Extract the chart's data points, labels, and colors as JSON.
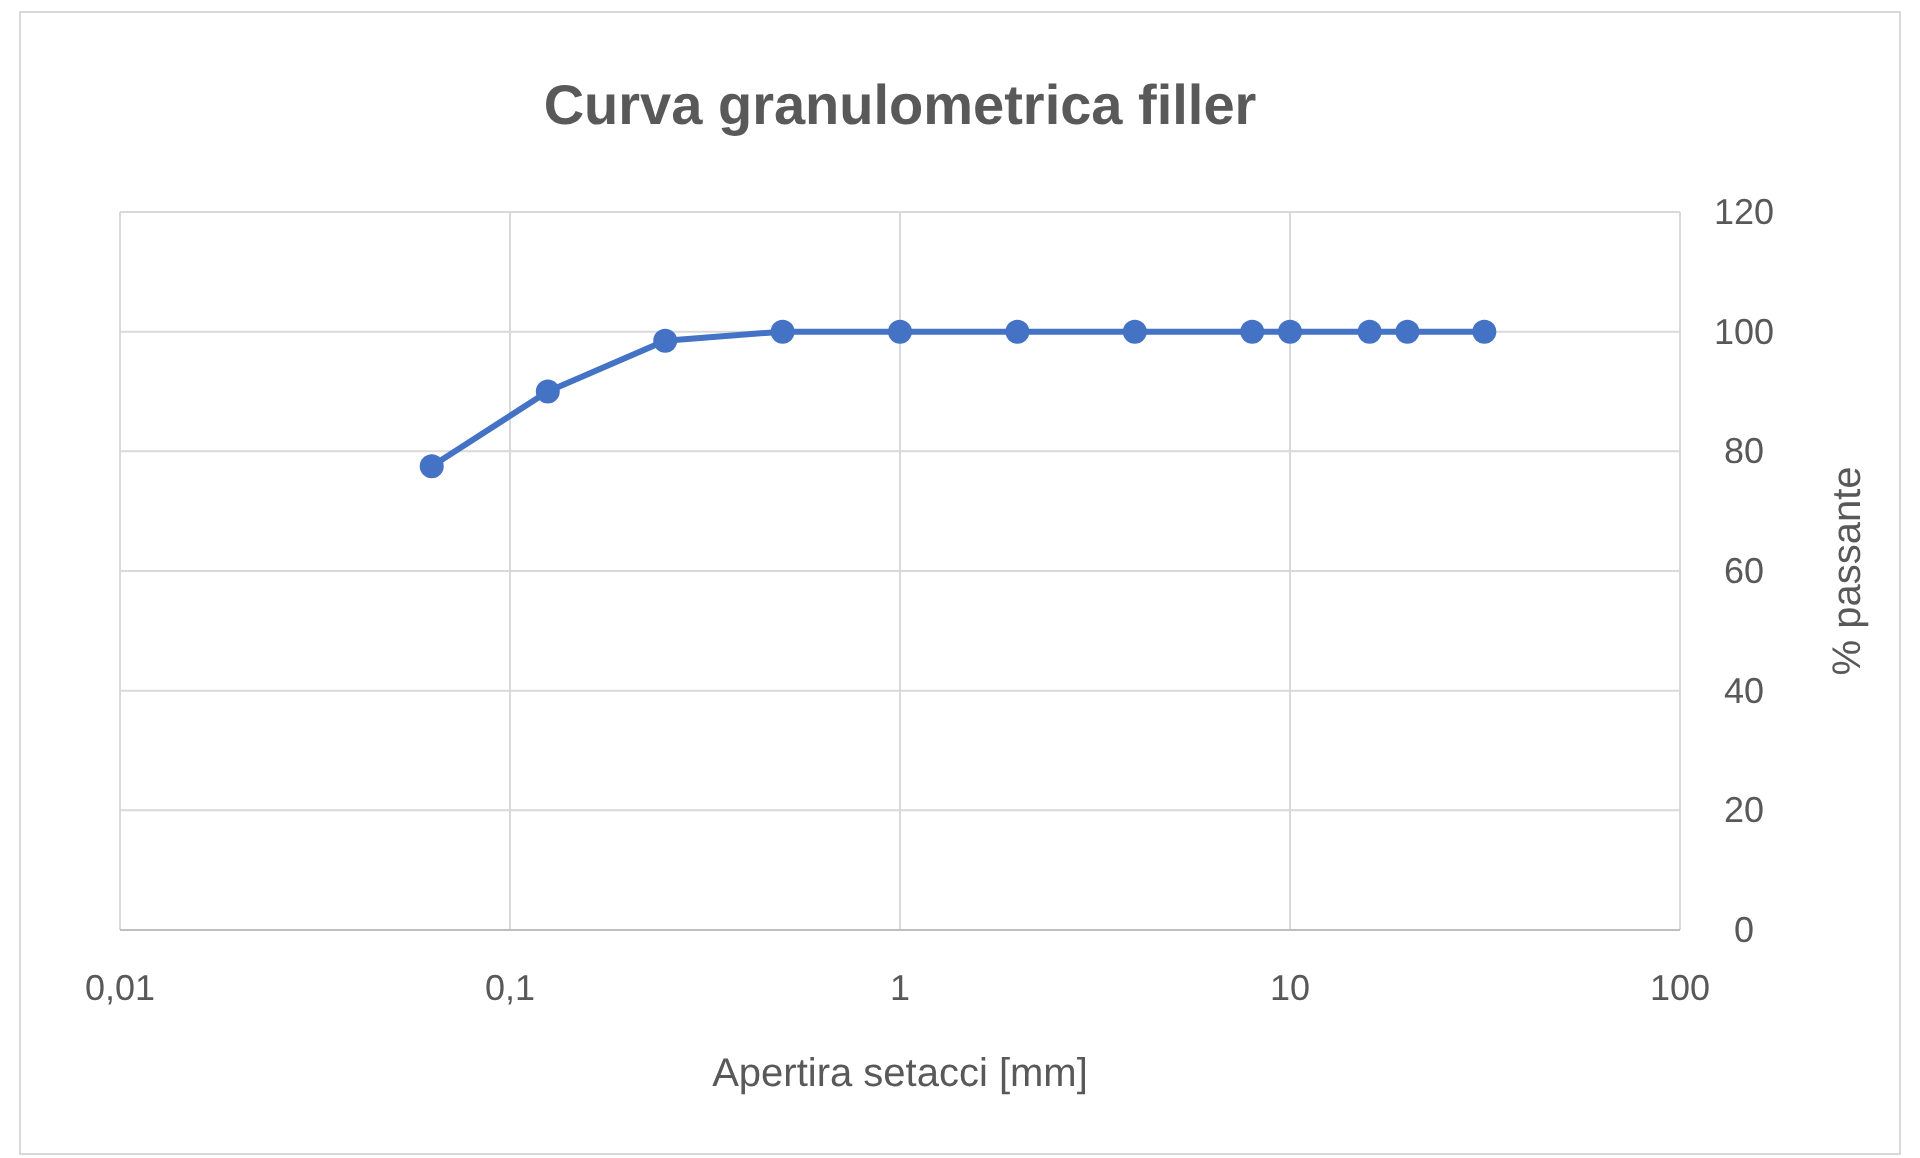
{
  "chart_data": {
    "type": "line",
    "title": "Curva granulometrica filler",
    "xlabel": "Apertira setacci [mm]",
    "ylabel": "% passante",
    "log": "x",
    "grid": true,
    "marker": "circle",
    "line_style": "solid",
    "x": [
      0.063,
      0.125,
      0.25,
      0.5,
      1,
      2,
      4,
      8,
      10,
      16,
      20,
      31.5
    ],
    "series": [
      {
        "color": "#4472c4",
        "values": [
          77.5,
          90,
          98.5,
          100,
          100,
          100,
          100,
          100,
          100,
          100,
          100,
          100
        ]
      }
    ],
    "xlim": [
      0.01,
      100
    ],
    "xticks": [
      {
        "value": 0.01,
        "label": "0,01"
      },
      {
        "value": 0.1,
        "label": "0,1"
      },
      1,
      10,
      100
    ],
    "ylim": [
      0,
      120
    ],
    "yticks": [
      0,
      20,
      40,
      60,
      80,
      100,
      120
    ]
  }
}
